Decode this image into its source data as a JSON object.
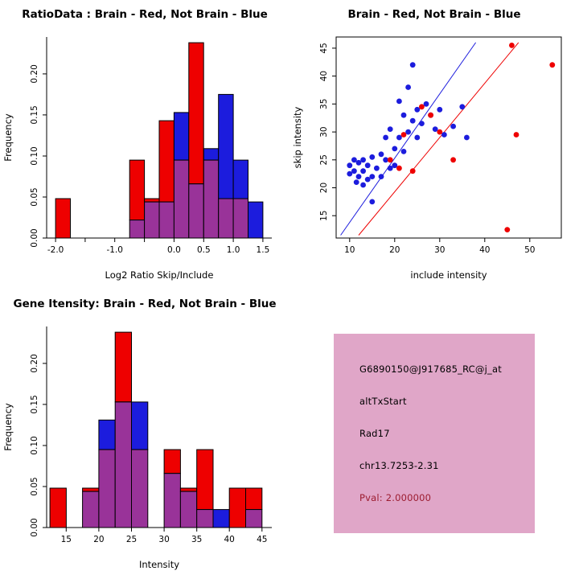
{
  "colors": {
    "red": "#EE0000",
    "blue": "#1C1CDD",
    "overlap": "#993399",
    "axis": "#000000",
    "scatter_line_red": "#EE0000",
    "scatter_line_blue": "#1C1CDD"
  },
  "chart_data": [
    {
      "type": "histogram-overlay",
      "title": "RatioData : Brain - Red, Not Brain - Blue",
      "xlabel": "Log2 Ratio Skip/Include",
      "ylabel": "Frequency",
      "bin_start": -2.0,
      "bin_width": 0.25,
      "xlim": [
        -2.15,
        1.65
      ],
      "ylim": [
        0,
        0.245
      ],
      "xticks": [
        -2.0,
        -1.5,
        -1.0,
        -0.5,
        0.0,
        0.5,
        1.0,
        1.5
      ],
      "xtick_labels": [
        "-2.0",
        "",
        "-1.0",
        "",
        "0.0",
        "0.5",
        "1.0",
        "1.5"
      ],
      "yticks": [
        0.0,
        0.05,
        0.1,
        0.15,
        0.2
      ],
      "ytick_labels": [
        "0.00",
        "0.05",
        "0.10",
        "0.15",
        "0.20"
      ],
      "series": [
        {
          "name": "Brain (Red)",
          "color_key": "red",
          "values": [
            0.048,
            0,
            0,
            0,
            0,
            0.095,
            0.048,
            0.143,
            0.095,
            0.238,
            0.095,
            0.048,
            0.048,
            0
          ]
        },
        {
          "name": "Not Brain (Blue)",
          "color_key": "blue",
          "values": [
            0,
            0,
            0,
            0,
            0,
            0.022,
            0.044,
            0.044,
            0.153,
            0.066,
            0.109,
            0.175,
            0.095,
            0.044
          ]
        }
      ]
    },
    {
      "type": "scatter",
      "title": "Brain - Red, Not Brain - Blue",
      "xlabel": "include intensity",
      "ylabel": "skip intensity",
      "xlim": [
        7,
        57
      ],
      "ylim": [
        11,
        47
      ],
      "xticks": [
        10,
        20,
        30,
        40,
        50
      ],
      "xtick_labels": [
        "10",
        "20",
        "30",
        "40",
        "50"
      ],
      "yticks": [
        15,
        20,
        25,
        30,
        35,
        40,
        45
      ],
      "ytick_labels": [
        "15",
        "20",
        "25",
        "30",
        "35",
        "40",
        "45"
      ],
      "series": [
        {
          "name": "Not Brain (Blue)",
          "color_key": "blue",
          "points": [
            [
              10,
              24
            ],
            [
              10,
              22.5
            ],
            [
              11,
              25
            ],
            [
              11,
              23
            ],
            [
              11.5,
              21
            ],
            [
              12,
              24.5
            ],
            [
              12,
              22
            ],
            [
              13,
              25
            ],
            [
              13,
              23
            ],
            [
              13,
              20.5
            ],
            [
              14,
              24
            ],
            [
              14,
              21.5
            ],
            [
              15,
              25.5
            ],
            [
              15,
              22
            ],
            [
              15,
              17.5
            ],
            [
              16,
              23.5
            ],
            [
              17,
              26
            ],
            [
              17,
              22
            ],
            [
              18,
              29
            ],
            [
              18,
              25
            ],
            [
              19,
              30.5
            ],
            [
              19,
              23.5
            ],
            [
              20,
              27
            ],
            [
              20,
              24
            ],
            [
              21,
              35.5
            ],
            [
              21,
              29
            ],
            [
              22,
              33
            ],
            [
              22,
              26.5
            ],
            [
              23,
              38
            ],
            [
              23,
              30
            ],
            [
              24,
              42
            ],
            [
              24,
              32
            ],
            [
              25,
              34
            ],
            [
              25,
              29
            ],
            [
              26,
              31.5
            ],
            [
              27,
              35
            ],
            [
              28,
              33
            ],
            [
              29,
              30.5
            ],
            [
              30,
              34
            ],
            [
              31,
              29.5
            ],
            [
              33,
              31
            ],
            [
              35,
              34.5
            ],
            [
              36,
              29
            ]
          ]
        },
        {
          "name": "Brain (Red)",
          "color_key": "red",
          "points": [
            [
              19,
              25
            ],
            [
              21,
              23.5
            ],
            [
              22,
              29.5
            ],
            [
              24,
              23
            ],
            [
              26,
              34.5
            ],
            [
              28,
              33
            ],
            [
              30,
              30
            ],
            [
              33,
              25
            ],
            [
              45,
              12.5
            ],
            [
              46,
              45.5
            ],
            [
              47,
              29.5
            ],
            [
              55,
              42
            ]
          ]
        }
      ],
      "lines": [
        {
          "color_key": "blue",
          "x1": 8,
          "y1": 11.5,
          "x2": 38,
          "y2": 46
        },
        {
          "color_key": "red",
          "x1": 12,
          "y1": 11.5,
          "x2": 47.5,
          "y2": 46
        }
      ]
    },
    {
      "type": "histogram-overlay",
      "title": "Gene Itensity: Brain - Red, Not Brain - Blue",
      "xlabel": "Intensity",
      "ylabel": "Frequency",
      "bin_start": 12.5,
      "bin_width": 2.5,
      "xlim": [
        12,
        46.5
      ],
      "ylim": [
        0,
        0.245
      ],
      "xticks": [
        15,
        20,
        25,
        30,
        35,
        40,
        45
      ],
      "xtick_labels": [
        "15",
        "20",
        "25",
        "30",
        "35",
        "40",
        "45"
      ],
      "yticks": [
        0.0,
        0.05,
        0.1,
        0.15,
        0.2
      ],
      "ytick_labels": [
        "0.00",
        "0.05",
        "0.10",
        "0.15",
        "0.20"
      ],
      "series": [
        {
          "name": "Brain (Red)",
          "color_key": "red",
          "values": [
            0.048,
            0,
            0.048,
            0.095,
            0.238,
            0.095,
            0,
            0.095,
            0.048,
            0.095,
            0,
            0.048,
            0.048
          ]
        },
        {
          "name": "Not Brain (Blue)",
          "color_key": "blue",
          "values": [
            0,
            0,
            0.044,
            0.131,
            0.153,
            0.153,
            0,
            0.066,
            0.044,
            0.022,
            0.022,
            0,
            0.022
          ]
        }
      ]
    }
  ],
  "info_panel": {
    "bg_color": "#E0A6C8",
    "lines": [
      {
        "text": "G6890150@J917685_RC@j_at",
        "color": "#000000"
      },
      {
        "text": "altTxStart",
        "color": "#000000"
      },
      {
        "text": "Rad17",
        "color": "#000000"
      },
      {
        "text": "chr13.7253-2.31",
        "color": "#000000"
      },
      {
        "text": "Pval: 2.000000",
        "color": "#9C1C30"
      }
    ]
  }
}
